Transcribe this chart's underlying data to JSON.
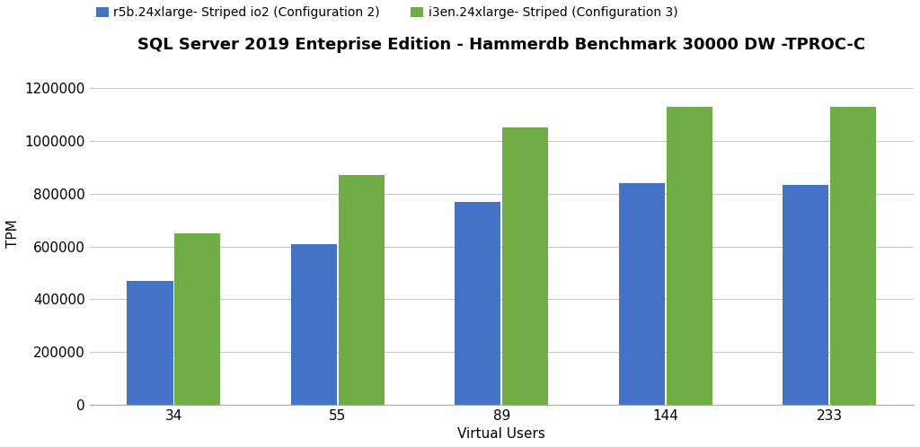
{
  "title": "SQL Server 2019 Enteprise Edition - Hammerdb Benchmark 30000 DW -TPROC-C",
  "xlabel": "Virtual Users",
  "ylabel": "TPM",
  "categories": [
    34,
    55,
    89,
    144,
    233
  ],
  "series": [
    {
      "label": "r5b.24xlarge- Striped io2 (Configuration 2)",
      "color": "#4472C4",
      "values": [
        470000,
        610000,
        770000,
        840000,
        835000
      ]
    },
    {
      "label": "i3en.24xlarge- Striped (Configuration 3)",
      "color": "#70AD47",
      "values": [
        650000,
        870000,
        1050000,
        1130000,
        1130000
      ]
    }
  ],
  "ylim": [
    0,
    1300000
  ],
  "yticks": [
    0,
    200000,
    400000,
    600000,
    800000,
    1000000,
    1200000
  ],
  "background_color": "#FFFFFF",
  "grid_color": "#C8C8C8",
  "title_fontsize": 13,
  "label_fontsize": 11,
  "tick_fontsize": 11,
  "legend_fontsize": 10,
  "bar_width": 0.28
}
